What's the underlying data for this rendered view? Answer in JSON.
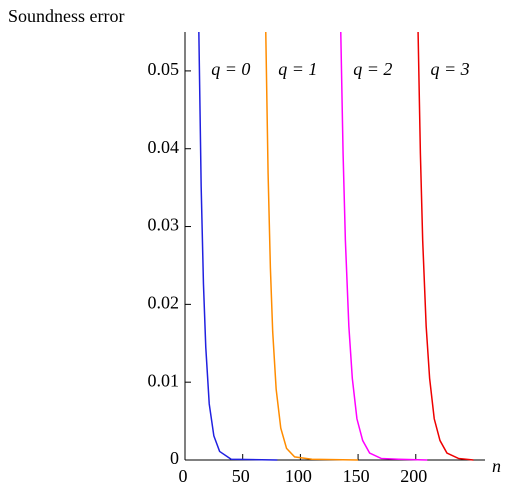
{
  "chart_data": {
    "type": "line",
    "y_label": "Soundness error",
    "x_label": "n",
    "xlim": [
      0,
      260
    ],
    "xticks": [
      0,
      50,
      100,
      150,
      200
    ],
    "ylim": [
      0,
      0.055
    ],
    "yticks": [
      0,
      0.01,
      0.02,
      0.03,
      0.04,
      0.05
    ],
    "series": [
      {
        "name": "q = 0",
        "color": "#2020e0",
        "x": [
          12,
          14,
          16,
          18,
          21,
          25,
          30,
          40,
          80
        ],
        "values": [
          0.055,
          0.0352,
          0.0226,
          0.0145,
          0.0072,
          0.0031,
          0.0011,
          0.0001,
          0
        ]
      },
      {
        "name": "q = 1",
        "color": "#ff8c00",
        "x": [
          70,
          72,
          74,
          76,
          79,
          83,
          88,
          95,
          110,
          150
        ],
        "values": [
          0.055,
          0.0369,
          0.0247,
          0.0165,
          0.0091,
          0.0041,
          0.0015,
          0.0004,
          0.0001,
          0
        ]
      },
      {
        "name": "q = 2",
        "color": "#ff00ff",
        "x": [
          135,
          137,
          139,
          142,
          145,
          149,
          154,
          160,
          170,
          185,
          210
        ],
        "values": [
          0.055,
          0.0394,
          0.0282,
          0.0172,
          0.0105,
          0.0053,
          0.0025,
          0.0009,
          0.0002,
          0.0001,
          0
        ]
      },
      {
        "name": "q = 3",
        "color": "#ee0000",
        "x": [
          202,
          204,
          206,
          209,
          212,
          216,
          221,
          227,
          237,
          250
        ],
        "values": [
          0.055,
          0.0394,
          0.0282,
          0.0172,
          0.0105,
          0.0053,
          0.0025,
          0.0009,
          0.0002,
          0
        ]
      }
    ]
  }
}
